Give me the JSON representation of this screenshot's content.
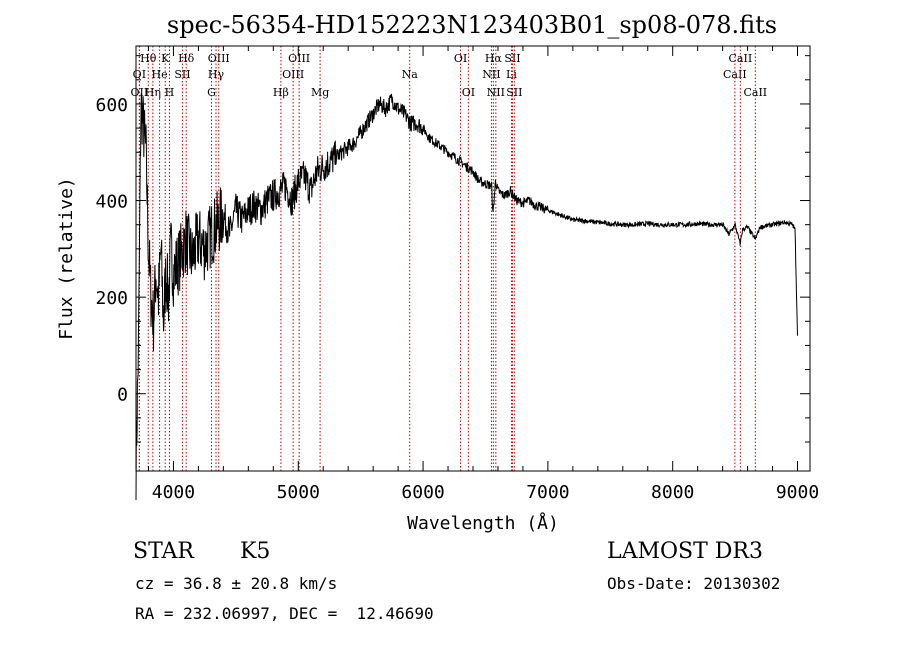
{
  "chart_data": {
    "type": "line",
    "title": "spec-56354-HD152223N123403B01_sp08-078.fits",
    "xlabel": "Wavelength (Å)",
    "ylabel": "Flux (relative)",
    "xlim": [
      3700,
      9100
    ],
    "ylim": [
      -160,
      720
    ],
    "xticks": [
      4000,
      5000,
      6000,
      7000,
      8000,
      9000
    ],
    "yticks": [
      0,
      200,
      400,
      600
    ],
    "grid": false,
    "series": [
      {
        "name": "spectrum",
        "x": [
          3700,
          3720,
          3740,
          3760,
          3780,
          3800,
          3820,
          3840,
          3860,
          3880,
          3900,
          3920,
          3940,
          3960,
          3980,
          4000,
          4050,
          4100,
          4150,
          4200,
          4250,
          4300,
          4350,
          4400,
          4450,
          4500,
          4550,
          4600,
          4650,
          4700,
          4750,
          4800,
          4850,
          4900,
          4950,
          5000,
          5050,
          5100,
          5150,
          5200,
          5250,
          5300,
          5350,
          5400,
          5450,
          5500,
          5550,
          5600,
          5650,
          5700,
          5750,
          5800,
          5850,
          5900,
          5950,
          6000,
          6050,
          6100,
          6150,
          6200,
          6250,
          6300,
          6350,
          6400,
          6450,
          6500,
          6550,
          6560,
          6580,
          6600,
          6650,
          6700,
          6750,
          6800,
          6850,
          6900,
          6950,
          7000,
          7100,
          7200,
          7300,
          7400,
          7500,
          7600,
          7700,
          7800,
          7900,
          8000,
          8100,
          8200,
          8300,
          8400,
          8450,
          8500,
          8540,
          8560,
          8600,
          8662,
          8700,
          8800,
          8900,
          8960,
          8980,
          9000
        ],
        "y": [
          -150,
          100,
          600,
          550,
          500,
          300,
          200,
          150,
          250,
          200,
          300,
          150,
          250,
          200,
          300,
          250,
          280,
          320,
          280,
          320,
          300,
          330,
          350,
          370,
          330,
          380,
          360,
          380,
          390,
          380,
          400,
          410,
          420,
          430,
          400,
          440,
          450,
          420,
          460,
          470,
          480,
          490,
          500,
          510,
          520,
          540,
          560,
          580,
          600,
          590,
          610,
          590,
          580,
          560,
          560,
          550,
          530,
          520,
          510,
          500,
          490,
          480,
          470,
          460,
          440,
          435,
          430,
          370,
          440,
          420,
          410,
          420,
          400,
          395,
          400,
          390,
          385,
          380,
          370,
          360,
          358,
          355,
          352,
          350,
          350,
          352,
          350,
          350,
          350,
          352,
          350,
          350,
          330,
          350,
          310,
          340,
          345,
          320,
          345,
          350,
          355,
          350,
          340,
          120
        ]
      }
    ],
    "lines": [
      {
        "name": "OI",
        "x": 3727,
        "row": 2
      },
      {
        "name": "OII",
        "x": 3727,
        "row": 3
      },
      {
        "name": "Hθ",
        "x": 3798,
        "row": 1
      },
      {
        "name": "Hη",
        "x": 3835,
        "row": 3
      },
      {
        "name": "He",
        "x": 3889,
        "row": 2
      },
      {
        "name": "K",
        "x": 3934,
        "row": 1
      },
      {
        "name": "H",
        "x": 3968,
        "row": 3
      },
      {
        "name": "SII",
        "x": 4072,
        "row": 2
      },
      {
        "name": "Hδ",
        "x": 4102,
        "row": 1
      },
      {
        "name": "OIII",
        "x": 4363,
        "row": 1
      },
      {
        "name": "Hγ",
        "x": 4341,
        "row": 2
      },
      {
        "name": "G",
        "x": 4305,
        "row": 3
      },
      {
        "name": "Hβ",
        "x": 4861,
        "row": 3
      },
      {
        "name": "OIII",
        "x": 4959,
        "row": 2
      },
      {
        "name": "OIII",
        "x": 5007,
        "row": 1
      },
      {
        "name": "Mg",
        "x": 5175,
        "row": 3
      },
      {
        "name": "Na",
        "x": 5893,
        "row": 2
      },
      {
        "name": "OI",
        "x": 6300,
        "row": 1
      },
      {
        "name": "OI",
        "x": 6363,
        "row": 3
      },
      {
        "name": "Hα",
        "x": 6563,
        "row": 1
      },
      {
        "name": "NII",
        "x": 6548,
        "row": 2
      },
      {
        "name": "NII",
        "x": 6583,
        "row": 3
      },
      {
        "name": "Li",
        "x": 6708,
        "row": 2
      },
      {
        "name": "SII",
        "x": 6716,
        "row": 1
      },
      {
        "name": "SII",
        "x": 6731,
        "row": 3
      },
      {
        "name": "CaII",
        "x": 8498,
        "row": 2
      },
      {
        "name": "CaII",
        "x": 8542,
        "row": 1
      },
      {
        "name": "CaII",
        "x": 8662,
        "row": 3
      }
    ]
  },
  "info": {
    "class_label": "STAR",
    "subclass_label": "K5",
    "survey_label": "LAMOST DR3",
    "cz_text": "cz = 36.8 ± 20.8 km/s",
    "obs_date_text": "Obs-Date: 20130302",
    "coords_text": "RA = 232.06997, DEC =  12.46690"
  },
  "colors": {
    "line_color": "#cc0000",
    "spectrum_color": "#000000"
  }
}
